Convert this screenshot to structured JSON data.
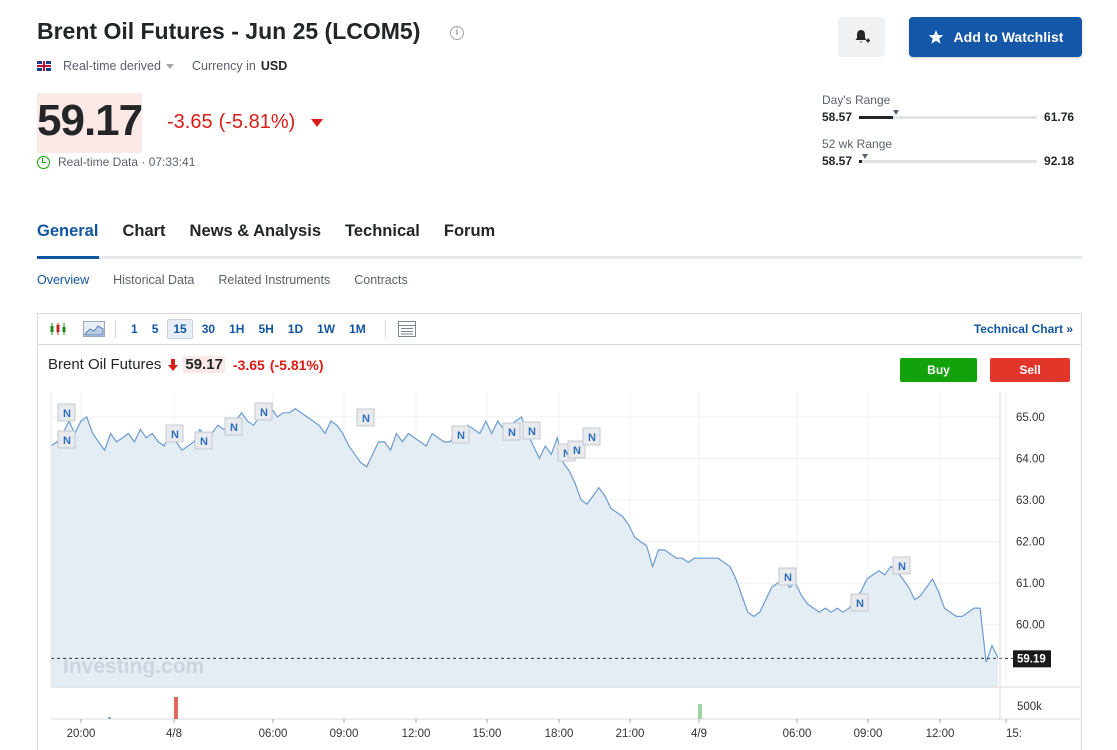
{
  "header": {
    "title": "Brent Oil Futures - Jun 25 (LCOM5)",
    "data_source": "Real-time derived",
    "currency_label": "Currency in",
    "currency": "USD",
    "bell_icon": "bell-plus-icon",
    "watchlist_label": "Add to Watchlist"
  },
  "quote": {
    "last": "59.17",
    "change": "-3.65",
    "change_pct": "(-5.81%)",
    "realtime_label": "Real-time Data · 07:33:41",
    "down_color": "#d91e18"
  },
  "ranges": {
    "day": {
      "label": "Day's Range",
      "low": "58.57",
      "high": "61.76",
      "low_value": 58.57,
      "high_value": 61.76,
      "current_value": 59.17
    },
    "week52": {
      "label": "52 wk Range",
      "low": "58.57",
      "high": "92.18",
      "low_value": 58.57,
      "high_value": 92.18,
      "current_value": 59.17
    }
  },
  "tabs": [
    {
      "label": "General",
      "active": true
    },
    {
      "label": "Chart"
    },
    {
      "label": "News & Analysis"
    },
    {
      "label": "Technical"
    },
    {
      "label": "Forum"
    }
  ],
  "subtabs": [
    {
      "label": "Overview",
      "active": true
    },
    {
      "label": "Historical Data"
    },
    {
      "label": "Related Instruments"
    },
    {
      "label": "Contracts"
    }
  ],
  "toolbar": {
    "timeframes": [
      "1",
      "5",
      "15",
      "30",
      "1H",
      "5H",
      "1D",
      "1W",
      "1M"
    ],
    "selected": "15",
    "technical_chart_label": "Technical Chart",
    "technical_chart_arrow": "»"
  },
  "chart_header": {
    "name": "Brent Oil Futures",
    "last": "59.17",
    "change": "-3.65",
    "change_pct": "(-5.81%)",
    "buy_label": "Buy",
    "sell_label": "Sell",
    "watermark": "Investing.com"
  },
  "chart_data": {
    "type": "area",
    "price_marker": "59.19",
    "ylim": [
      58.5,
      65.6
    ],
    "y_ticks": [
      "65.00",
      "64.00",
      "63.00",
      "62.00",
      "61.00",
      "60.00"
    ],
    "volume_tick": "500k",
    "x_ticks": [
      "20:00",
      "4/8",
      "06:00",
      "09:00",
      "12:00",
      "15:00",
      "18:00",
      "21:00",
      "4/9",
      "06:00",
      "09:00",
      "12:00",
      "15:"
    ],
    "series": [
      {
        "values": [
          64.3,
          64.4,
          64.6,
          64.9,
          64.6,
          64.9,
          65.0,
          64.6,
          64.4,
          64.2,
          64.6,
          64.4,
          64.5,
          64.6,
          64.4,
          64.7,
          64.5,
          64.6,
          64.4,
          64.3,
          64.6,
          64.4,
          64.2,
          64.3,
          64.4,
          64.7,
          64.5,
          64.6,
          64.8,
          64.7,
          64.8,
          64.9,
          65.1,
          64.9,
          64.8,
          65.0,
          65.1,
          65.2,
          65.0,
          65.1,
          65.1,
          65.2,
          65.1,
          65.0,
          64.9,
          64.8,
          64.6,
          64.9,
          64.8,
          64.6,
          64.3,
          64.1,
          63.9,
          63.8,
          64.1,
          64.4,
          64.4,
          64.2,
          64.6,
          64.4,
          64.6,
          64.5,
          64.4,
          64.3,
          64.6,
          64.5,
          64.4,
          64.4,
          64.6,
          64.6,
          64.8,
          64.7,
          64.6,
          64.9,
          64.6,
          64.9,
          64.7,
          64.8,
          64.9,
          65.0,
          64.6,
          64.3,
          64.0,
          64.3,
          64.1,
          64.5,
          63.9,
          63.7,
          63.4,
          63.0,
          62.9,
          63.1,
          63.3,
          63.1,
          62.8,
          62.7,
          62.6,
          62.4,
          62.1,
          62.0,
          61.9,
          61.4,
          61.8,
          61.8,
          61.7,
          61.6,
          61.6,
          61.5,
          61.6,
          61.6,
          61.6,
          61.6,
          61.6,
          61.5,
          61.4,
          61.1,
          60.7,
          60.3,
          60.2,
          60.3,
          60.6,
          60.9,
          61.0,
          61.1,
          60.9,
          61.0,
          60.7,
          60.5,
          60.4,
          60.3,
          60.4,
          60.3,
          60.4,
          60.3,
          60.4,
          60.6,
          60.8,
          61.1,
          61.2,
          61.3,
          61.2,
          61.4,
          61.3,
          61.1,
          60.9,
          60.6,
          60.7,
          60.9,
          61.1,
          60.8,
          60.4,
          60.3,
          60.2,
          60.2,
          60.3,
          60.4,
          60.4,
          59.1,
          59.5,
          59.2
        ]
      }
    ],
    "news_markers": [
      "N",
      "N",
      "N",
      "N",
      "N",
      "N",
      "N",
      "N",
      "N",
      "N",
      "N",
      "N",
      "N",
      "N",
      "N",
      "N",
      "N",
      "N"
    ],
    "grid": true,
    "up_color": "#9fd6a8",
    "down_color": "#e06a60"
  }
}
